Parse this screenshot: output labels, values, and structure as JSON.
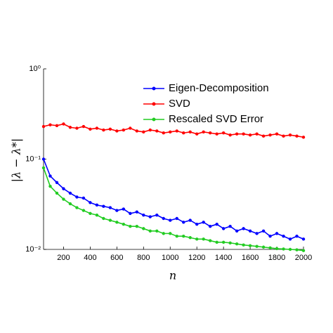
{
  "chart_data": {
    "type": "line",
    "x_label": "n",
    "y_label": "|λ − λ*|",
    "log_y": true,
    "legend": "top-right",
    "xlim": [
      50,
      2000
    ],
    "ylim": [
      0.01,
      1
    ],
    "xticks": [
      200,
      400,
      600,
      800,
      1000,
      1200,
      1400,
      1600,
      1800,
      2000
    ],
    "yticks": [
      {
        "value": 0.01,
        "label": "10⁻²"
      },
      {
        "value": 0.1,
        "label": "10⁻¹"
      },
      {
        "value": 1,
        "label": "10⁰"
      }
    ],
    "x": [
      50,
      100,
      150,
      200,
      250,
      300,
      350,
      400,
      450,
      500,
      550,
      600,
      650,
      700,
      750,
      800,
      850,
      900,
      950,
      1000,
      1050,
      1100,
      1150,
      1200,
      1250,
      1300,
      1350,
      1400,
      1450,
      1500,
      1550,
      1600,
      1650,
      1700,
      1750,
      1800,
      1850,
      1900,
      1950,
      2000
    ],
    "series": [
      {
        "name": "Eigen-Decomposition",
        "color": "#0000ff",
        "values": [
          0.1,
          0.065,
          0.055,
          0.047,
          0.042,
          0.038,
          0.037,
          0.033,
          0.031,
          0.03,
          0.029,
          0.027,
          0.028,
          0.025,
          0.026,
          0.024,
          0.023,
          0.024,
          0.022,
          0.021,
          0.022,
          0.02,
          0.021,
          0.019,
          0.02,
          0.018,
          0.019,
          0.017,
          0.018,
          0.016,
          0.017,
          0.016,
          0.015,
          0.016,
          0.014,
          0.015,
          0.014,
          0.013,
          0.014,
          0.013
        ]
      },
      {
        "name": "SVD",
        "color": "#ff0000",
        "values": [
          0.23,
          0.24,
          0.235,
          0.245,
          0.225,
          0.22,
          0.23,
          0.215,
          0.22,
          0.21,
          0.215,
          0.205,
          0.21,
          0.22,
          0.205,
          0.2,
          0.21,
          0.205,
          0.195,
          0.2,
          0.205,
          0.195,
          0.2,
          0.19,
          0.2,
          0.195,
          0.19,
          0.195,
          0.185,
          0.19,
          0.19,
          0.185,
          0.19,
          0.18,
          0.185,
          0.19,
          0.18,
          0.185,
          0.18,
          0.175
        ]
      },
      {
        "name": "Rescaled SVD Error",
        "color": "#22cc22",
        "values": [
          0.08,
          0.05,
          0.042,
          0.036,
          0.032,
          0.029,
          0.027,
          0.025,
          0.024,
          0.022,
          0.021,
          0.02,
          0.019,
          0.018,
          0.018,
          0.017,
          0.016,
          0.016,
          0.015,
          0.015,
          0.014,
          0.014,
          0.0135,
          0.013,
          0.013,
          0.0125,
          0.012,
          0.012,
          0.0118,
          0.0115,
          0.0112,
          0.011,
          0.0108,
          0.0106,
          0.0104,
          0.0102,
          0.0101,
          0.01,
          0.0099,
          0.0097
        ]
      }
    ]
  }
}
